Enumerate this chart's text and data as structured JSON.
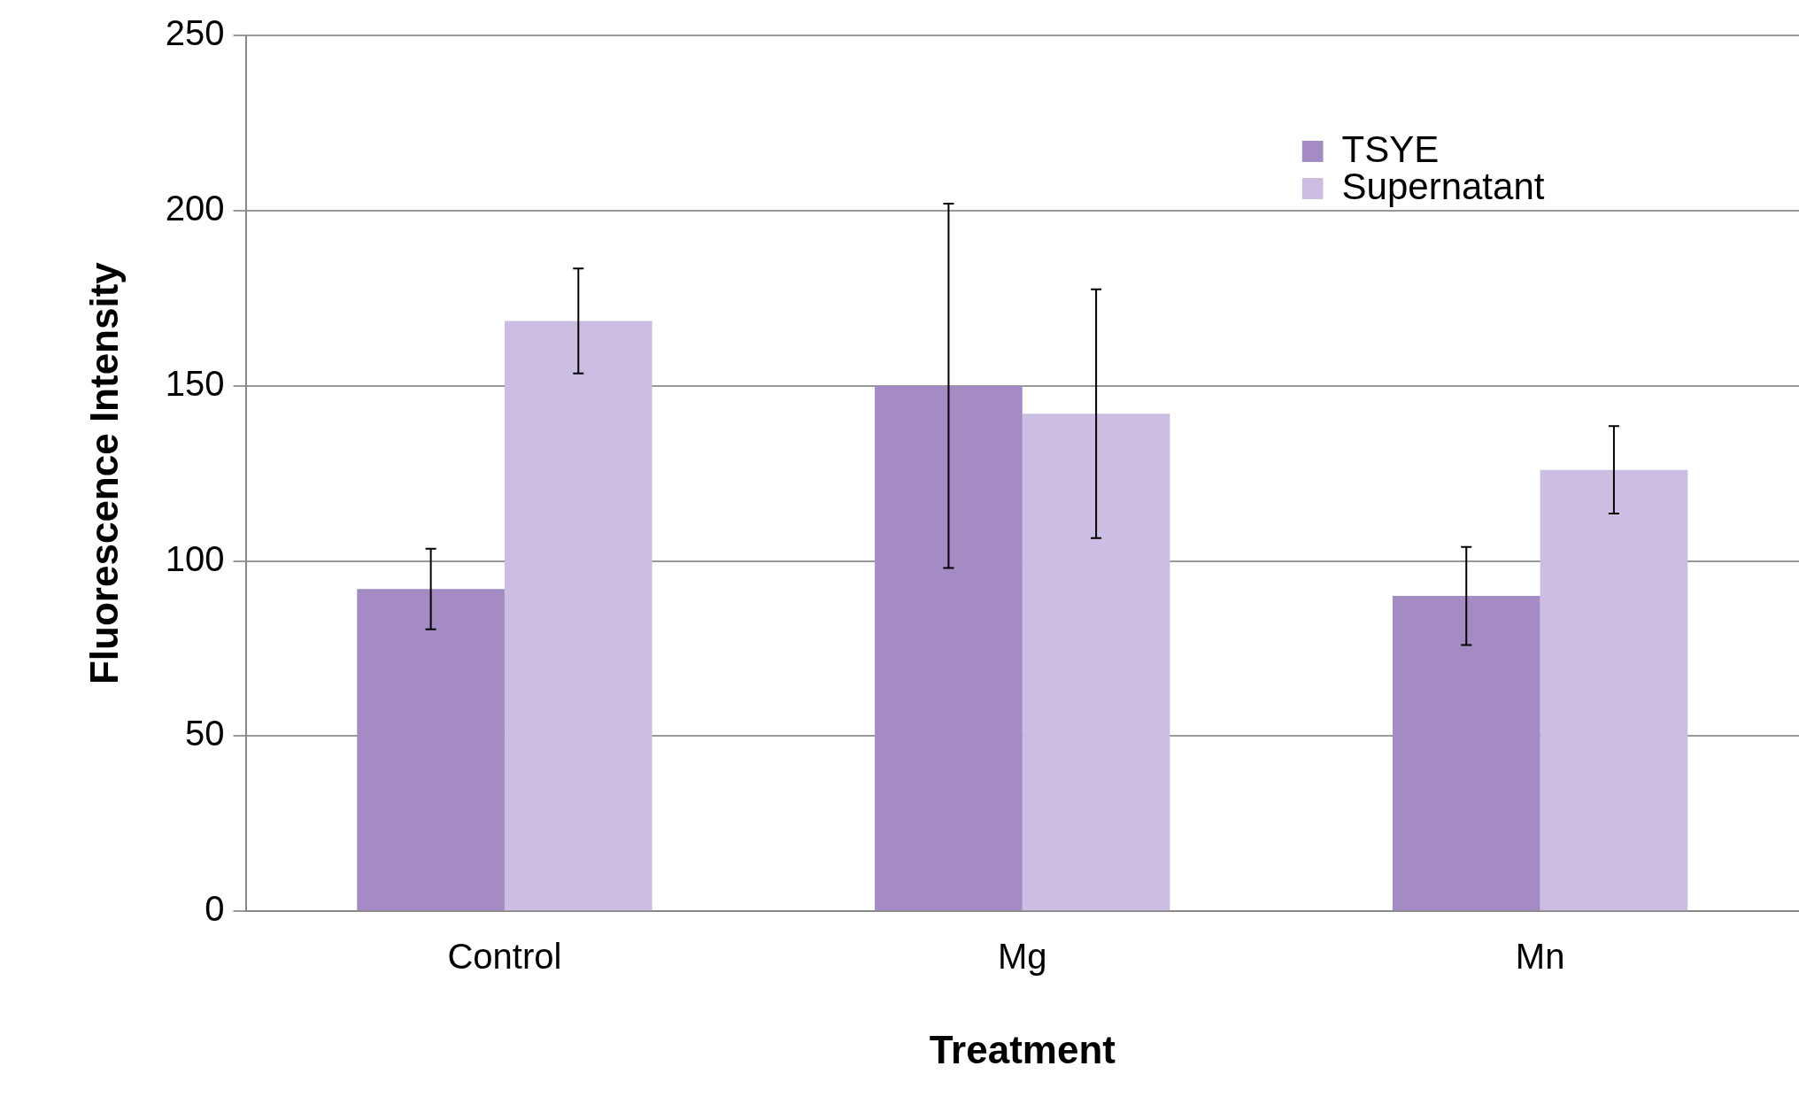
{
  "chart_data": {
    "type": "bar",
    "xlabel": "Treatment",
    "ylabel": "Fluorescence Intensity",
    "categories": [
      "Control",
      "Mg",
      "Mn"
    ],
    "series": [
      {
        "name": "TSYE",
        "color": "#a48bc3",
        "values": [
          92,
          150,
          90
        ],
        "errors": [
          11.5,
          52,
          14
        ]
      },
      {
        "name": "Supernatant",
        "color": "#ccbee2",
        "values": [
          168.5,
          142,
          126
        ],
        "errors": [
          15,
          35.5,
          12.5
        ]
      }
    ],
    "ylim": [
      0,
      250
    ],
    "yticks": [
      0,
      50,
      100,
      150,
      200,
      250
    ],
    "grid": "y",
    "legend": "top right"
  }
}
